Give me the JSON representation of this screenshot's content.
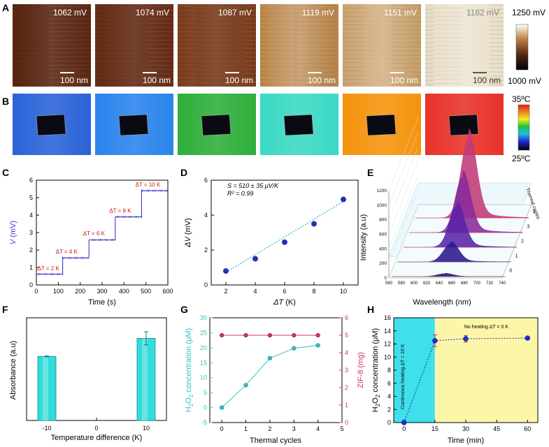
{
  "figure": {
    "panel_letters": [
      "A",
      "B",
      "C",
      "D",
      "E",
      "F",
      "G",
      "H"
    ]
  },
  "panel_a": {
    "voltages": [
      "1062 mV",
      "1074 mV",
      "1087 mV",
      "1119 mV",
      "1151 mV",
      "1182 mV"
    ],
    "scale_label": "100 nm",
    "colorbar_max": "1250 mV",
    "colorbar_min": "1000 mV",
    "tile_colors": [
      "#5a2410",
      "#642a12",
      "#7a3a1a",
      "#b98447",
      "#c9a06a",
      "#e9dfc8"
    ]
  },
  "panel_b": {
    "colorbar_max": "35ºC",
    "colorbar_min": "25ºC",
    "tile_colors": [
      "#2a63d8",
      "#2a84ec",
      "#2eae3a",
      "#3ad9c4",
      "#f5930c",
      "#e8322a"
    ]
  },
  "chart_data": [
    {
      "id": "C",
      "type": "line",
      "title": "",
      "xlabel": "Time (s)",
      "ylabel_var": "V",
      "ylabel_unit": " (mV)",
      "xlim": [
        0,
        600
      ],
      "ylim": [
        0,
        6
      ],
      "xticks": [
        "0",
        "100",
        "200",
        "300",
        "400",
        "500",
        "600"
      ],
      "yticks": [
        "0",
        "1",
        "2",
        "3",
        "4",
        "5",
        "6"
      ],
      "series": [
        {
          "name": "V",
          "color": "#3a3ad0",
          "x": [
            0,
            120,
            120,
            240,
            240,
            360,
            360,
            480,
            480,
            600
          ],
          "y": [
            0.62,
            0.62,
            1.55,
            1.55,
            2.58,
            2.58,
            3.9,
            3.9,
            5.4,
            5.4
          ]
        }
      ],
      "annotations": [
        {
          "label": "ΔT = 2 K",
          "x": 5,
          "y": 0.85
        },
        {
          "label": "ΔT = 4 K",
          "x": 88,
          "y": 1.8
        },
        {
          "label": "ΔT = 6 K",
          "x": 213,
          "y": 2.85
        },
        {
          "label": "ΔT = 8 K",
          "x": 333,
          "y": 4.15
        },
        {
          "label": "ΔT = 10 K",
          "x": 452,
          "y": 5.65
        }
      ]
    },
    {
      "id": "D",
      "type": "scatter",
      "xlabel_var": "ΔT",
      "xlabel_unit": " (K)",
      "ylabel_var": "ΔV",
      "ylabel_unit": " (mV)",
      "xlim": [
        1,
        11
      ],
      "ylim": [
        0,
        6
      ],
      "xticks": [
        "2",
        "4",
        "6",
        "8",
        "10"
      ],
      "yticks": [
        "0",
        "2",
        "4",
        "6"
      ],
      "x": [
        2,
        4,
        6,
        8,
        10
      ],
      "y": [
        0.8,
        1.5,
        2.45,
        3.5,
        4.9
      ],
      "fit": {
        "x": [
          2,
          10
        ],
        "y": [
          0.72,
          4.78
        ]
      },
      "text_lines": [
        "S = 510 ± 35 μV/K",
        "R² = 0.99"
      ]
    },
    {
      "id": "E",
      "type": "area",
      "xlabel": "Wavelength (nm)",
      "ylabel": "Intensity (a.u)",
      "zlabel": "Thermal cycles",
      "xlim": [
        560,
        740
      ],
      "ylim": [
        0,
        1200
      ],
      "xticks": [
        "560",
        "580",
        "600",
        "620",
        "640",
        "660",
        "680",
        "700",
        "720",
        "740"
      ],
      "yticks": [
        "0",
        "200",
        "400",
        "600",
        "800",
        "1000",
        "1200"
      ],
      "cycles": [
        "0",
        "1",
        "2",
        "3",
        "4"
      ],
      "peak_wavelength": 645,
      "peak_width_nm": 12,
      "series": [
        {
          "name": "0",
          "peak": 40,
          "color": "#1a1470"
        },
        {
          "name": "1",
          "peak": 250,
          "color": "#2a1890"
        },
        {
          "name": "2",
          "peak": 560,
          "color": "#5a22a8"
        },
        {
          "name": "3",
          "peak": 770,
          "color": "#8a2a9a"
        },
        {
          "name": "4",
          "peak": 1100,
          "color": "#c23a78"
        }
      ]
    },
    {
      "id": "F",
      "type": "bar",
      "xlabel": "Temperature difference (K)",
      "ylabel": "Absorbance (a.u)",
      "categories": [
        "-10",
        "0",
        "10"
      ],
      "values": [
        0.78,
        0.0,
        1.0
      ],
      "errors": [
        0.005,
        0.0,
        0.08
      ],
      "ylim": [
        0,
        1.25
      ]
    },
    {
      "id": "G",
      "type": "line",
      "xlabel": "Thermal cycles",
      "ylabel": "H2O2 concentration (μM)",
      "ylabel2": "ZIF-8 (mg)",
      "xlim": [
        -0.5,
        5
      ],
      "ylim": [
        -5,
        30
      ],
      "ylim2": [
        0,
        6
      ],
      "xticks": [
        "0",
        "1",
        "2",
        "3",
        "4",
        "5"
      ],
      "yticks": [
        "-5",
        "0",
        "5",
        "10",
        "15",
        "20",
        "25",
        "30"
      ],
      "yticks2": [
        "0",
        "1",
        "2",
        "3",
        "4",
        "5",
        "6"
      ],
      "series": [
        {
          "name": "H2O2",
          "axis": "left",
          "color": "#2ec4c4",
          "x": [
            0,
            1,
            2,
            3,
            4
          ],
          "y": [
            0,
            7.5,
            16.5,
            19.8,
            20.8
          ]
        },
        {
          "name": "ZIF-8",
          "axis": "right",
          "color": "#d0307a",
          "x": [
            0,
            1,
            2,
            3,
            4
          ],
          "y": [
            5,
            5,
            5,
            5,
            5
          ]
        }
      ]
    },
    {
      "id": "H",
      "type": "scatter",
      "xlabel": "Time (min)",
      "ylabel": "H2O2 concentration (μM)",
      "xlim": [
        -5,
        65
      ],
      "ylim": [
        0,
        16
      ],
      "xticks": [
        "0",
        "15",
        "30",
        "45",
        "60"
      ],
      "yticks": [
        "0",
        "2",
        "4",
        "6",
        "8",
        "10",
        "12",
        "14",
        "16"
      ],
      "x": [
        0,
        15,
        30,
        60
      ],
      "y": [
        0,
        12.5,
        12.8,
        12.9
      ],
      "errors": [
        0,
        0.9,
        0.5,
        0.2
      ],
      "regions": [
        {
          "label": "Continuous heating ΔT = 10  K",
          "from": -5,
          "to": 15,
          "color": "#3fe0ec"
        },
        {
          "label": "No heating ΔT = 0  K",
          "from": 15,
          "to": 65,
          "color": "#fcf6a8"
        }
      ]
    }
  ]
}
